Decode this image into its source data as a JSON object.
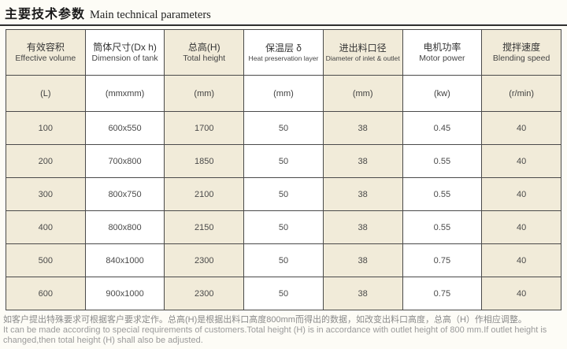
{
  "title": {
    "zh": "主要技术参数",
    "en": "Main technical parameters"
  },
  "table": {
    "columns": [
      {
        "zh": "有效容积",
        "en": "Effective volume",
        "unit": "(L)"
      },
      {
        "zh": "筒体尺寸(Dx h)",
        "en": "Dimension of tank",
        "unit": "(mmxmm)"
      },
      {
        "zh": "总高(H)",
        "en": "Total height",
        "unit": "(mm)"
      },
      {
        "zh": "保温层 δ",
        "en": "Heat preservation layer",
        "unit": "(mm)"
      },
      {
        "zh": "进出料口径",
        "en": "Diameter of inlet & outlet",
        "unit": "(mm)"
      },
      {
        "zh": "电机功率",
        "en": "Motor power",
        "unit": "(kw)"
      },
      {
        "zh": "搅拌速度",
        "en": "Blending speed",
        "unit": "(r/min)"
      }
    ],
    "rows": [
      [
        "100",
        "600x550",
        "1700",
        "50",
        "38",
        "0.45",
        "40"
      ],
      [
        "200",
        "700x800",
        "1850",
        "50",
        "38",
        "0.55",
        "40"
      ],
      [
        "300",
        "800x750",
        "2100",
        "50",
        "38",
        "0.55",
        "40"
      ],
      [
        "400",
        "800x800",
        "2150",
        "50",
        "38",
        "0.55",
        "40"
      ],
      [
        "500",
        "840x1000",
        "2300",
        "50",
        "38",
        "0.75",
        "40"
      ],
      [
        "600",
        "900x1000",
        "2300",
        "50",
        "38",
        "0.75",
        "40"
      ]
    ]
  },
  "footnote": {
    "zh": "如客户提出特殊要求可根据客户要求定作。总高(H)是根据出料口高度800mm而得出的数据，如改变出料口高度，总高（H）作相应调整。",
    "en": "It can be made according to special requirements of customers.Total height (H) is in accordance with outlet height of 800 mm.If outlet height is changed,then total height (H) shall also be adjusted."
  },
  "colors": {
    "column_beige": "#f1ebd9",
    "column_white": "#ffffff",
    "border": "#4a4a4a",
    "text": "#3b3b3b",
    "footnote_text": "#8a8a8a"
  }
}
